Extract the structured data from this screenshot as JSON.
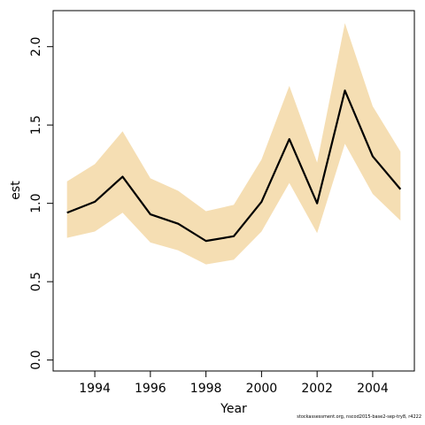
{
  "chart_data": {
    "type": "line",
    "xlabel": "Year",
    "ylabel": "est",
    "xlim": [
      1992.5,
      2005.5
    ],
    "ylim": [
      -0.07,
      2.23
    ],
    "x_ticks": [
      1994,
      1996,
      1998,
      2000,
      2002,
      2004
    ],
    "x_tick_labels": [
      "1994",
      "1996",
      "1998",
      "2000",
      "2002",
      "2004"
    ],
    "y_ticks": [
      0.0,
      0.5,
      1.0,
      1.5,
      2.0
    ],
    "y_tick_labels": [
      "0.0",
      "0.5",
      "1.0",
      "1.5",
      "2.0"
    ],
    "x": [
      1993,
      1994,
      1995,
      1996,
      1997,
      1998,
      1999,
      2000,
      2001,
      2002,
      2003,
      2004,
      2005
    ],
    "series": [
      {
        "values": [
          0.94,
          1.01,
          1.17,
          0.93,
          0.87,
          0.76,
          0.79,
          1.01,
          1.41,
          1.0,
          1.72,
          1.3,
          1.09
        ],
        "lower": [
          0.78,
          0.82,
          0.94,
          0.75,
          0.7,
          0.61,
          0.64,
          0.82,
          1.13,
          0.81,
          1.38,
          1.06,
          0.89
        ],
        "upper": [
          1.14,
          1.25,
          1.46,
          1.16,
          1.08,
          0.95,
          0.99,
          1.28,
          1.75,
          1.26,
          2.15,
          1.62,
          1.33
        ]
      }
    ],
    "grid": false,
    "colors": {
      "band": "#f5deb3",
      "line": "#000000"
    }
  },
  "footnote": "stockassessment.org, nscod2015-base2-sep-try8, r4222"
}
